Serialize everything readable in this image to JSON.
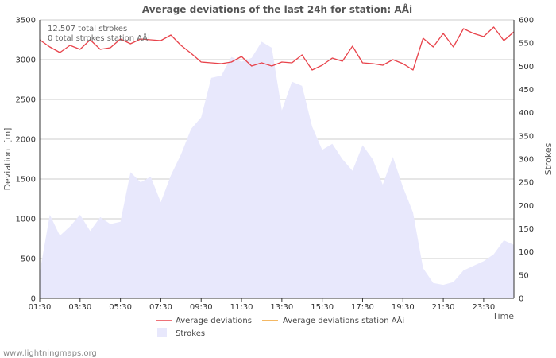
{
  "chart_data": {
    "type": "line",
    "title": "Average deviations of the last 24h for station: AÅi",
    "xlabel": "Time",
    "ylabel": "Deviation  [m]",
    "y2label": "Strokes",
    "ylim": [
      0,
      3500
    ],
    "y2lim": [
      0,
      600
    ],
    "yticks": [
      0,
      500,
      1000,
      1500,
      2000,
      2500,
      3000,
      3500
    ],
    "y2ticks": [
      0,
      50,
      100,
      150,
      200,
      250,
      300,
      350,
      400,
      450,
      500,
      550,
      600
    ],
    "xlim": [
      0,
      23.5
    ],
    "xticks": [
      {
        "pos": 0,
        "label": "01:30"
      },
      {
        "pos": 2,
        "label": "03:30"
      },
      {
        "pos": 4,
        "label": "05:30"
      },
      {
        "pos": 6,
        "label": "07:30"
      },
      {
        "pos": 8,
        "label": "09:30"
      },
      {
        "pos": 10,
        "label": "11:30"
      },
      {
        "pos": 12,
        "label": "13:30"
      },
      {
        "pos": 14,
        "label": "15:30"
      },
      {
        "pos": 16,
        "label": "17:30"
      },
      {
        "pos": 18,
        "label": "19:30"
      },
      {
        "pos": 20,
        "label": "21:30"
      },
      {
        "pos": 22,
        "label": "23:30"
      }
    ],
    "annotations": [
      "12.507 total strokes",
      "0 total strokes station AÅi"
    ],
    "series": [
      {
        "name": "Average deviations",
        "type": "line",
        "axis": "left",
        "color": "#e8434b",
        "x": [
          0,
          0.5,
          1,
          1.5,
          2,
          2.5,
          3,
          3.5,
          4,
          4.5,
          5,
          5.5,
          6,
          6.5,
          7,
          7.5,
          8,
          8.5,
          9,
          9.5,
          10,
          10.5,
          11,
          11.5,
          12,
          12.5,
          13,
          13.5,
          14,
          14.5,
          15,
          15.5,
          16,
          16.5,
          17,
          17.5,
          18,
          18.5,
          19,
          19.5,
          20,
          20.5,
          21,
          21.5,
          22,
          22.5,
          23,
          23.5
        ],
        "values": [
          3250,
          3160,
          3090,
          3180,
          3130,
          3250,
          3130,
          3150,
          3260,
          3200,
          3260,
          3250,
          3240,
          3310,
          3180,
          3080,
          2970,
          2960,
          2950,
          2970,
          3040,
          2920,
          2960,
          2920,
          2970,
          2960,
          3060,
          2870,
          2930,
          3020,
          2980,
          3170,
          2960,
          2950,
          2930,
          3000,
          2950,
          2870,
          3270,
          3160,
          3330,
          3160,
          3390,
          3330,
          3290,
          3410,
          3240,
          3350
        ]
      },
      {
        "name": "Average deviations station AÅi",
        "type": "line",
        "axis": "left",
        "color": "#f0a030",
        "x": [],
        "values": []
      },
      {
        "name": "Strokes",
        "type": "area",
        "axis": "right",
        "color": "#e8e8fc",
        "x": [
          0,
          0.5,
          1,
          1.5,
          2,
          2.5,
          3,
          3.5,
          4,
          4.5,
          5,
          5.5,
          6,
          6.5,
          7,
          7.5,
          8,
          8.5,
          9,
          9.5,
          10,
          10.5,
          11,
          11.5,
          12,
          12.5,
          13,
          13.5,
          14,
          14.5,
          15,
          15.5,
          16,
          16.5,
          17,
          17.5,
          18,
          18.5,
          19,
          19.5,
          20,
          20.5,
          21,
          21.5,
          22,
          22.5,
          23,
          23.5
        ],
        "values": [
          55,
          180,
          135,
          155,
          180,
          145,
          175,
          160,
          165,
          272,
          250,
          262,
          207,
          265,
          310,
          365,
          390,
          475,
          480,
          520,
          510,
          518,
          553,
          540,
          405,
          467,
          458,
          370,
          320,
          333,
          300,
          275,
          330,
          300,
          245,
          305,
          240,
          185,
          65,
          33,
          29,
          35,
          60,
          70,
          80,
          95,
          125,
          115
        ]
      }
    ]
  },
  "footer": "www.lightningmaps.org"
}
